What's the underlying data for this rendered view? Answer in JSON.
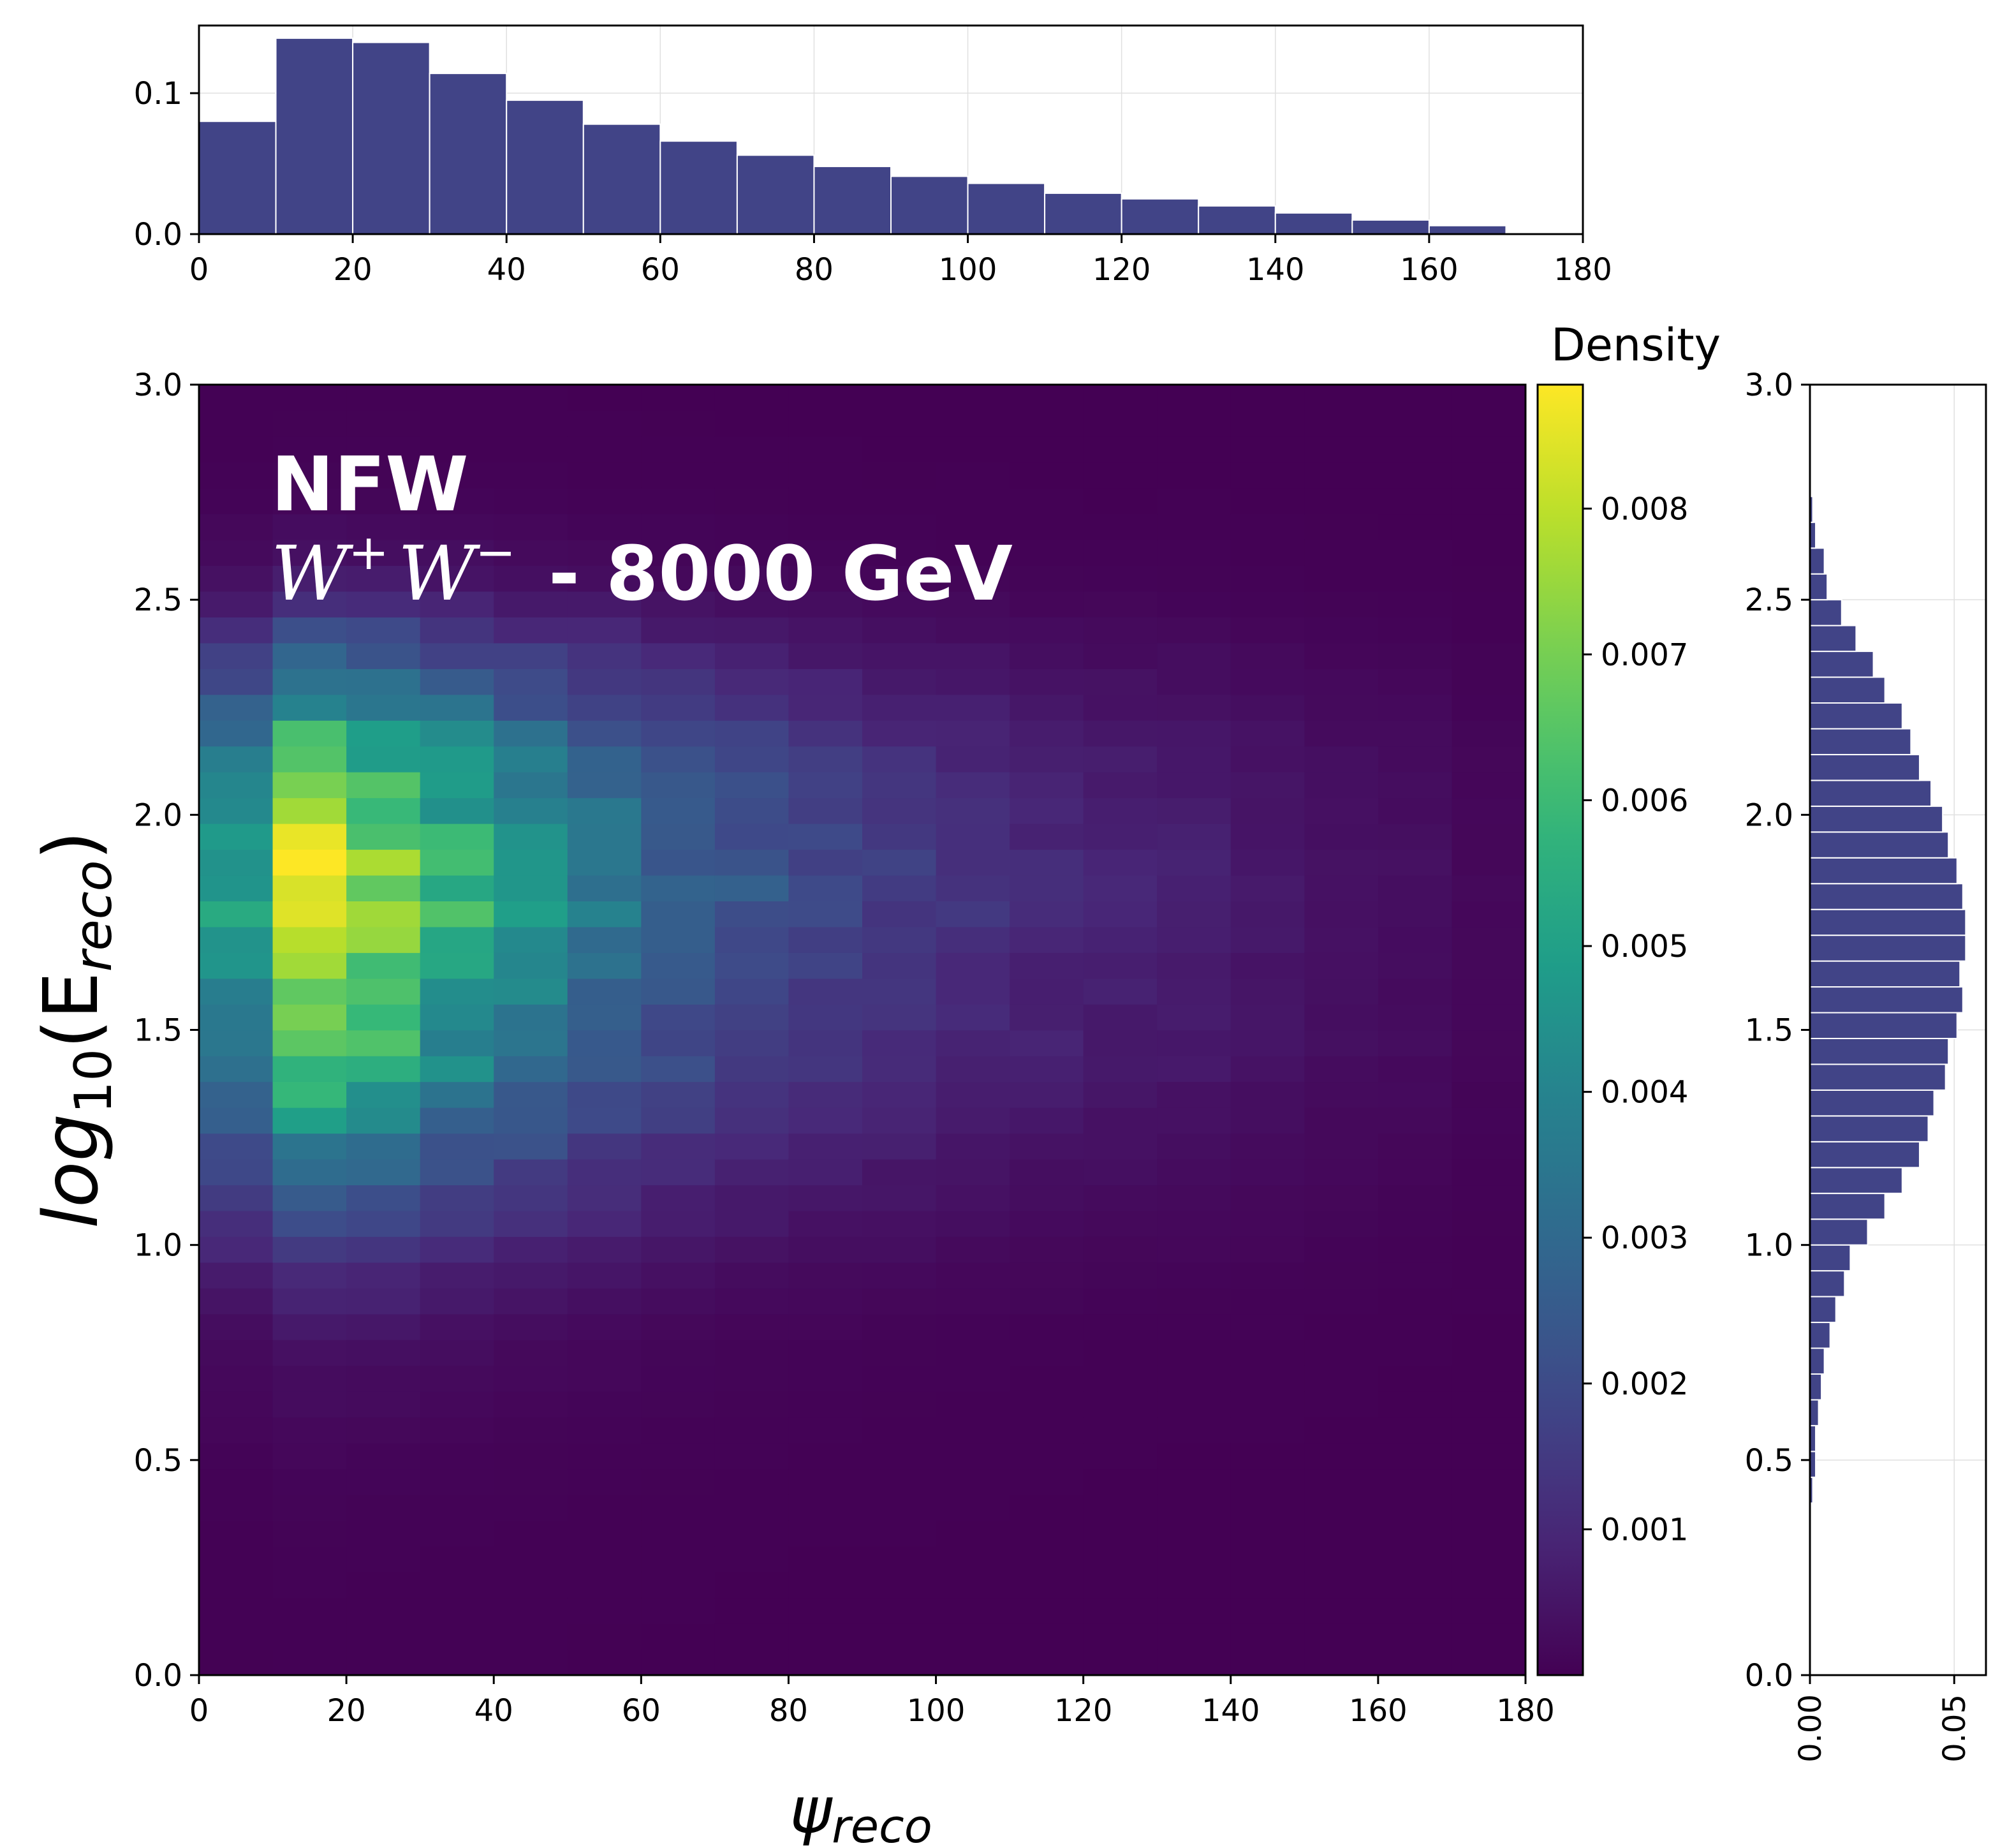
{
  "chart_data": [
    {
      "type": "heatmap",
      "id": "main-2d-histogram",
      "xlabel_base": "ψ",
      "xlabel_sub": "reco",
      "ylabel_base": "log",
      "ylabel_sub1": "10",
      "ylabel_mid": "(E",
      "ylabel_sub2": "reco",
      "ylabel_end": ")",
      "xlim": [
        0,
        180
      ],
      "ylim": [
        0,
        3
      ],
      "x_ticks": [
        "0",
        "20",
        "40",
        "60",
        "80",
        "100",
        "120",
        "140",
        "160",
        "180"
      ],
      "y_ticks": [
        "0.0",
        "0.5",
        "1.0",
        "1.5",
        "2.0",
        "2.5",
        "3.0"
      ],
      "x_bin_edges_step": 10,
      "y_bin_edges_step": 0.06,
      "annotation_line1": "NFW",
      "annotation_line2_w1": "W",
      "annotation_line2_sup1": "+",
      "annotation_line2_w2": "W",
      "annotation_line2_sup2": "−",
      "annotation_line2_rest": " - 8000 GeV",
      "colormap": "viridis",
      "x_profile": [
        0.55,
        1.0,
        0.86,
        0.66,
        0.53,
        0.42,
        0.32,
        0.27,
        0.22,
        0.18,
        0.15,
        0.12,
        0.1,
        0.09,
        0.07,
        0.05,
        0.04,
        0.02
      ],
      "y_profile": [
        0.002,
        0.002,
        0.003,
        0.003,
        0.004,
        0.005,
        0.006,
        0.008,
        0.01,
        0.014,
        0.018,
        0.022,
        0.028,
        0.04,
        0.06,
        0.08,
        0.11,
        0.14,
        0.18,
        0.22,
        0.27,
        0.32,
        0.37,
        0.42,
        0.46,
        0.48,
        0.5,
        0.52,
        0.55,
        0.6,
        0.62,
        0.6,
        0.56,
        0.52,
        0.5,
        0.46,
        0.4,
        0.32,
        0.26,
        0.2,
        0.14,
        0.09,
        0.05,
        0.03,
        0.02,
        0.01,
        0.006,
        0.004,
        0.003,
        0.002
      ]
    },
    {
      "type": "bar",
      "id": "top-marginal-histogram",
      "x": [
        5,
        15,
        25,
        35,
        45,
        55,
        65,
        75,
        85,
        95,
        105,
        115,
        125,
        135,
        145,
        155,
        165,
        175
      ],
      "values": [
        0.08,
        0.139,
        0.136,
        0.114,
        0.095,
        0.078,
        0.066,
        0.056,
        0.048,
        0.041,
        0.036,
        0.029,
        0.025,
        0.02,
        0.015,
        0.01,
        0.006,
        0.001
      ],
      "xlim": [
        0,
        180
      ],
      "ylim": [
        0,
        0.148
      ],
      "x_ticks": [
        "0",
        "20",
        "40",
        "60",
        "80",
        "100",
        "120",
        "140",
        "160",
        "180"
      ],
      "y_ticks": [
        "0.0",
        "0.1"
      ],
      "color": "#414487"
    },
    {
      "type": "bar",
      "id": "right-marginal-histogram",
      "orientation": "horizontal",
      "y": [
        0.43,
        0.49,
        0.55,
        0.61,
        0.67,
        0.73,
        0.79,
        0.85,
        0.91,
        0.97,
        1.03,
        1.09,
        1.15,
        1.21,
        1.27,
        1.33,
        1.39,
        1.45,
        1.51,
        1.57,
        1.63,
        1.69,
        1.75,
        1.81,
        1.87,
        1.93,
        1.99,
        2.05,
        2.11,
        2.17,
        2.23,
        2.29,
        2.35,
        2.41,
        2.47,
        2.53,
        2.59,
        2.65,
        2.71
      ],
      "values": [
        0.001,
        0.002,
        0.002,
        0.003,
        0.004,
        0.005,
        0.007,
        0.009,
        0.012,
        0.014,
        0.02,
        0.026,
        0.032,
        0.038,
        0.041,
        0.043,
        0.047,
        0.048,
        0.051,
        0.053,
        0.052,
        0.054,
        0.054,
        0.053,
        0.051,
        0.048,
        0.046,
        0.042,
        0.038,
        0.035,
        0.032,
        0.026,
        0.022,
        0.016,
        0.011,
        0.006,
        0.005,
        0.002,
        0.001
      ],
      "ylim": [
        0,
        3
      ],
      "xlim": [
        0,
        0.061
      ],
      "y_ticks": [
        "0.0",
        "0.5",
        "1.0",
        "1.5",
        "2.0",
        "2.5",
        "3.0"
      ],
      "x_ticks": [
        "0.00",
        "0.05"
      ],
      "color": "#414487"
    },
    {
      "type": "colorbar",
      "id": "density-colorbar",
      "label": "Density",
      "vmin": 0.0,
      "vmax": 0.00885,
      "ticks": [
        "0.001",
        "0.002",
        "0.003",
        "0.004",
        "0.005",
        "0.006",
        "0.007",
        "0.008"
      ],
      "colormap": "viridis"
    }
  ]
}
